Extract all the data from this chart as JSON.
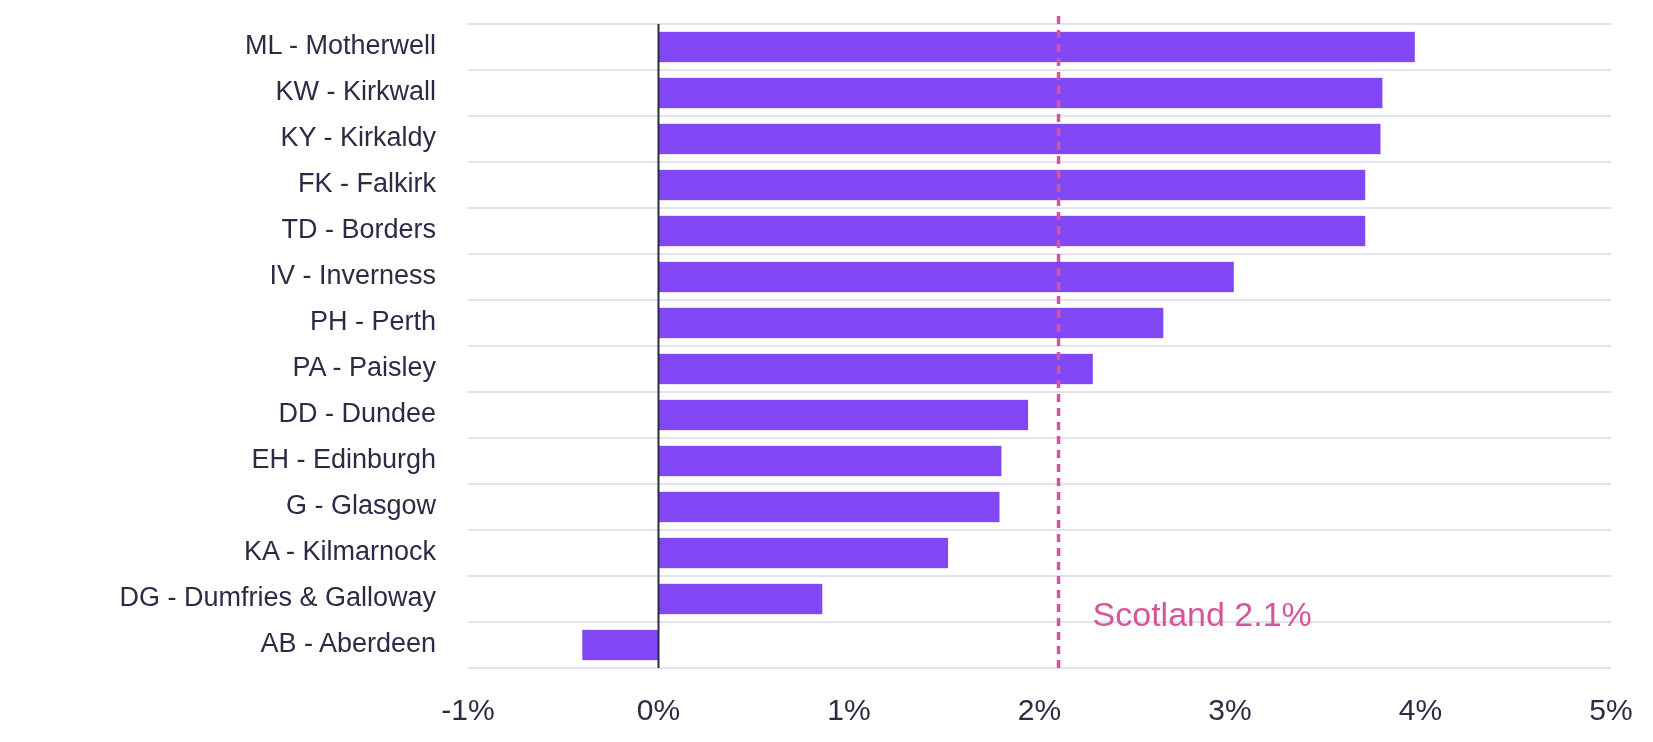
{
  "chart_data": {
    "type": "bar",
    "orientation": "horizontal",
    "categories": [
      "ML - Motherwell",
      "KW - Kirkwall",
      "KY - Kirkaldy",
      "FK - Falkirk",
      "TD - Borders",
      "IV - Inverness",
      "PH - Perth",
      "PA - Paisley",
      "DD - Dundee",
      "EH - Edinburgh",
      "G - Glasgow",
      "KA - Kilmarnock",
      "DG - Dumfries & Galloway",
      "AB - Aberdeen"
    ],
    "values": [
      3.97,
      3.8,
      3.79,
      3.71,
      3.71,
      3.02,
      2.65,
      2.28,
      1.94,
      1.8,
      1.79,
      1.52,
      0.86,
      -0.4
    ],
    "color": "#8247f5",
    "xlim": [
      -1,
      5
    ],
    "xticks": [
      {
        "value": -1,
        "label": "-1%"
      },
      {
        "value": 0,
        "label": "0%"
      },
      {
        "value": 1,
        "label": "1%"
      },
      {
        "value": 2,
        "label": "2%"
      },
      {
        "value": 3,
        "label": "3%"
      },
      {
        "value": 4,
        "label": "4%"
      },
      {
        "value": 5,
        "label": "5%"
      }
    ],
    "grid": "y",
    "ref_lines": [
      {
        "axis": "x",
        "value": 2.1,
        "label": "Scotland 2.1%",
        "color": "#d6559a",
        "line_style": "dashed"
      }
    ]
  }
}
